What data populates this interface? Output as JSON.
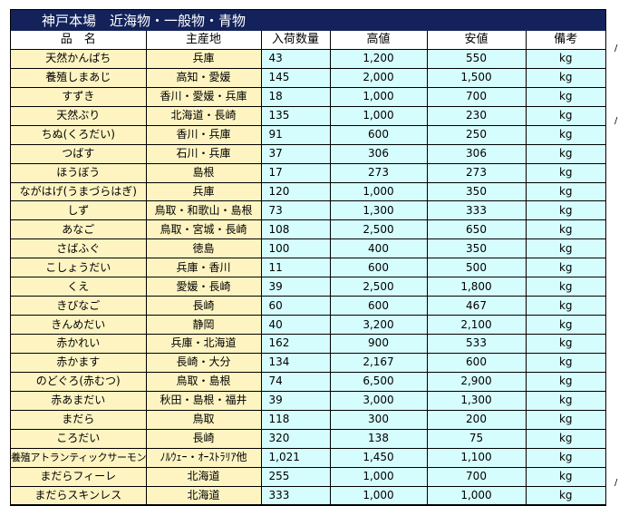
{
  "title": "神戸本場　近海物・一般物・青物",
  "headers": {
    "name": "品　名",
    "origin": "主産地",
    "qty": "入荷数量",
    "high": "高値",
    "low": "安値",
    "unit": "備考"
  },
  "rows": [
    {
      "name": "天然かんぱち",
      "origin": "兵庫",
      "qty": "43",
      "high": "1,200",
      "low": "550",
      "unit": "kg"
    },
    {
      "name": "養殖しまあじ",
      "origin": "高知・愛媛",
      "qty": "145",
      "high": "2,000",
      "low": "1,500",
      "unit": "kg"
    },
    {
      "name": "すずき",
      "origin": "香川・愛媛・兵庫",
      "qty": "18",
      "high": "1,000",
      "low": "700",
      "unit": "kg"
    },
    {
      "name": "天然ぶり",
      "origin": "北海道・長崎",
      "qty": "135",
      "high": "1,000",
      "low": "230",
      "unit": "kg"
    },
    {
      "name": "ちぬ(くろだい)",
      "origin": "香川・兵庫",
      "qty": "91",
      "high": "600",
      "low": "250",
      "unit": "kg"
    },
    {
      "name": "つばす",
      "origin": "石川・兵庫",
      "qty": "37",
      "high": "306",
      "low": "306",
      "unit": "kg"
    },
    {
      "name": "ほうぼう",
      "origin": "島根",
      "qty": "17",
      "high": "273",
      "low": "273",
      "unit": "kg"
    },
    {
      "name": "ながはげ(うまづらはぎ)",
      "origin": "兵庫",
      "qty": "120",
      "high": "1,000",
      "low": "350",
      "unit": "kg"
    },
    {
      "name": "しず",
      "origin": "鳥取・和歌山・島根",
      "qty": "73",
      "high": "1,300",
      "low": "333",
      "unit": "kg"
    },
    {
      "name": "あなご",
      "origin": "鳥取・宮城・長崎",
      "qty": "108",
      "high": "2,500",
      "low": "650",
      "unit": "kg"
    },
    {
      "name": "さばふぐ",
      "origin": "徳島",
      "qty": "100",
      "high": "400",
      "low": "350",
      "unit": "kg"
    },
    {
      "name": "こしょうだい",
      "origin": "兵庫・香川",
      "qty": "11",
      "high": "600",
      "low": "500",
      "unit": "kg"
    },
    {
      "name": "くえ",
      "origin": "愛媛・長崎",
      "qty": "39",
      "high": "2,500",
      "low": "1,800",
      "unit": "kg"
    },
    {
      "name": "きびなご",
      "origin": "長崎",
      "qty": "60",
      "high": "600",
      "low": "467",
      "unit": "kg"
    },
    {
      "name": "きんめだい",
      "origin": "静岡",
      "qty": "40",
      "high": "3,200",
      "low": "2,100",
      "unit": "kg"
    },
    {
      "name": "赤かれい",
      "origin": "兵庫・北海道",
      "qty": "162",
      "high": "900",
      "low": "533",
      "unit": "kg"
    },
    {
      "name": "赤かます",
      "origin": "長崎・大分",
      "qty": "134",
      "high": "2,167",
      "low": "600",
      "unit": "kg"
    },
    {
      "name": "のどぐろ(赤むつ)",
      "origin": "鳥取・島根",
      "qty": "74",
      "high": "6,500",
      "low": "2,900",
      "unit": "kg"
    },
    {
      "name": "赤あまだい",
      "origin": "秋田・島根・福井",
      "qty": "39",
      "high": "3,000",
      "low": "1,300",
      "unit": "kg"
    },
    {
      "name": "まだら",
      "origin": "鳥取",
      "qty": "118",
      "high": "300",
      "low": "200",
      "unit": "kg"
    },
    {
      "name": "ころだい",
      "origin": "長崎",
      "qty": "320",
      "high": "138",
      "low": "75",
      "unit": "kg"
    },
    {
      "name": "養殖アトランティックサーモン",
      "origin": "ﾉﾙｳｪｰ・ｵｰｽﾄﾗﾘｱ他",
      "qty": "1,021",
      "high": "1,450",
      "low": "1,100",
      "unit": "kg"
    },
    {
      "name": "まだらフィーレ",
      "origin": "北海道",
      "qty": "255",
      "high": "1,000",
      "low": "700",
      "unit": "kg"
    },
    {
      "name": "まだらスキンレス",
      "origin": "北海道",
      "qty": "333",
      "high": "1,000",
      "low": "1,000",
      "unit": "kg"
    }
  ]
}
